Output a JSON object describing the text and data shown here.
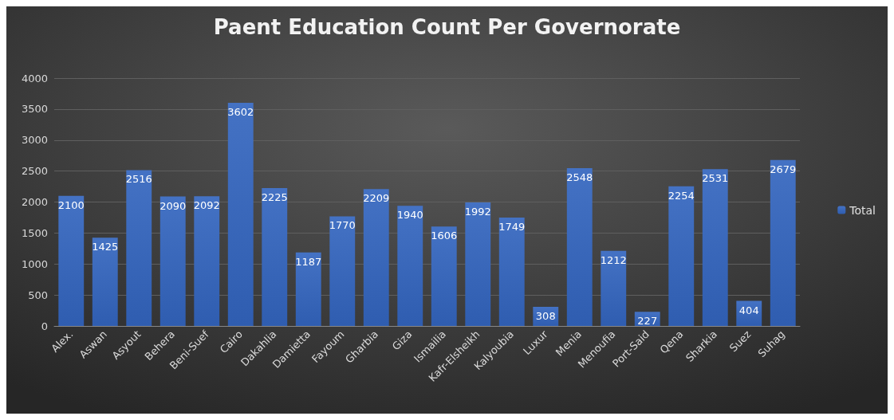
{
  "chart_data": {
    "type": "bar",
    "title": "Paent Education Count Per Governorate",
    "categories": [
      "Alex.",
      "Aswan",
      "Asyout",
      "Behera",
      "Beni-Suef",
      "Cairo",
      "Dakahlia",
      "Damietta",
      "Fayoum",
      "Gharbia",
      "Giza",
      "Ismailia",
      "Kafr-Elsheikh",
      "Kalyoubia",
      "Luxur",
      "Menia",
      "Menoufia",
      "Port-Said",
      "Qena",
      "Sharkia",
      "Suez",
      "Suhag"
    ],
    "series": [
      {
        "name": "Total",
        "color": "#4472c4",
        "values": [
          2100,
          1425,
          2516,
          2090,
          2092,
          3602,
          2225,
          1187,
          1770,
          2209,
          1940,
          1606,
          1992,
          1749,
          308,
          2548,
          1212,
          227,
          2254,
          2531,
          404,
          2679
        ]
      }
    ],
    "ylim": [
      0,
      4000
    ],
    "yticks": [
      0,
      500,
      1000,
      1500,
      2000,
      2500,
      3000,
      3500,
      4000
    ],
    "grid": "y",
    "legend": "right",
    "data_labels": true
  }
}
